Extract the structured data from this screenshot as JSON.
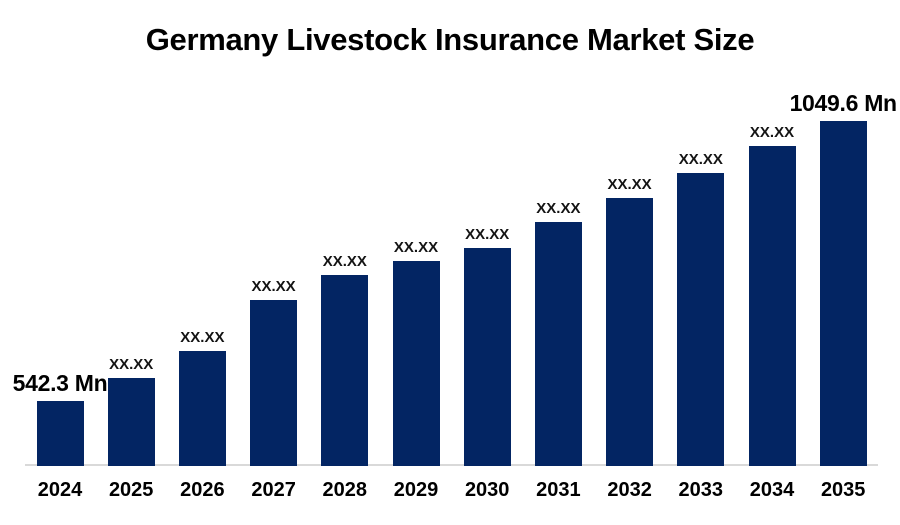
{
  "title": {
    "main": "Germany Livestock Insurance",
    "suffix": "Market Size"
  },
  "chart_data": {
    "type": "bar",
    "title": "Germany Livestock Insurance Market Size",
    "unit": "Mn",
    "xlabel": "",
    "ylabel": "",
    "y_axis_visible": false,
    "gridlines": false,
    "legend": "none",
    "ylim": [
      425,
      1160
    ],
    "bar_color": "#032563",
    "axis_line_color": "#d9d9d9",
    "categories": [
      "2024",
      "2025",
      "2026",
      "2027",
      "2028",
      "2029",
      "2030",
      "2031",
      "2032",
      "2033",
      "2034",
      "2035"
    ],
    "bars": [
      {
        "year": "2024",
        "label": "542.3 Mn",
        "value": 542.3,
        "value_is_estimated": false,
        "emphasized": true
      },
      {
        "year": "2025",
        "label": "XX.XX",
        "value": 585,
        "value_is_estimated": true,
        "emphasized": false
      },
      {
        "year": "2026",
        "label": "XX.XX",
        "value": 633,
        "value_is_estimated": true,
        "emphasized": false
      },
      {
        "year": "2027",
        "label": "XX.XX",
        "value": 725,
        "value_is_estimated": true,
        "emphasized": false
      },
      {
        "year": "2028",
        "label": "XX.XX",
        "value": 771,
        "value_is_estimated": true,
        "emphasized": false
      },
      {
        "year": "2029",
        "label": "XX.XX",
        "value": 797,
        "value_is_estimated": true,
        "emphasized": false
      },
      {
        "year": "2030",
        "label": "XX.XX",
        "value": 819,
        "value_is_estimated": true,
        "emphasized": false
      },
      {
        "year": "2031",
        "label": "XX.XX",
        "value": 866,
        "value_is_estimated": true,
        "emphasized": false
      },
      {
        "year": "2032",
        "label": "XX.XX",
        "value": 910,
        "value_is_estimated": true,
        "emphasized": false
      },
      {
        "year": "2033",
        "label": "XX.XX",
        "value": 956,
        "value_is_estimated": true,
        "emphasized": false
      },
      {
        "year": "2034",
        "label": "XX.XX",
        "value": 1004,
        "value_is_estimated": true,
        "emphasized": false
      },
      {
        "year": "2035",
        "label": "1049.6 Mn",
        "value": 1049.6,
        "value_is_estimated": false,
        "emphasized": true
      }
    ]
  }
}
